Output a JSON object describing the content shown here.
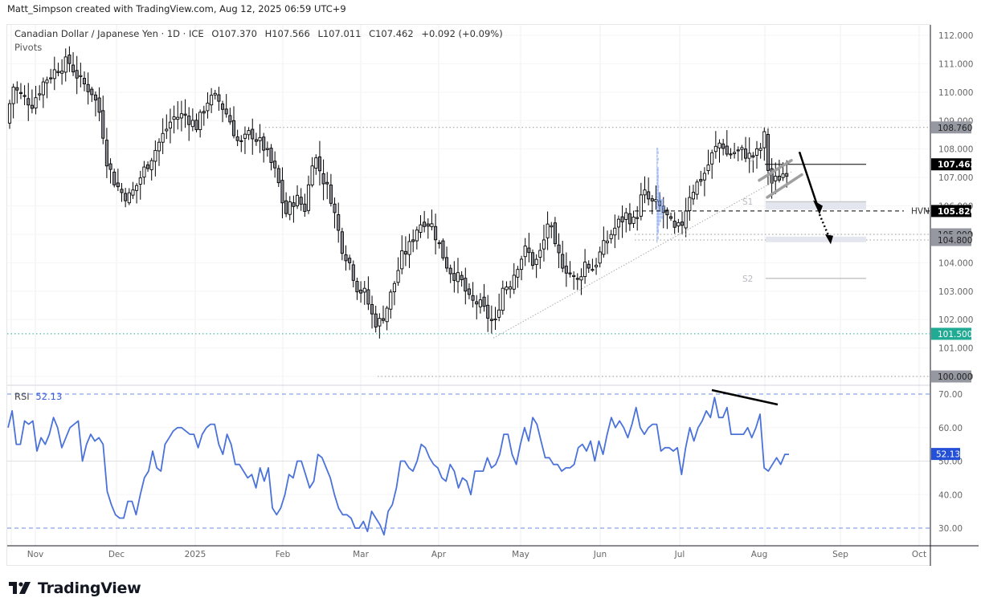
{
  "credit": "Matt_Simpson created with TradingView.com, Aug 12, 2025 06:59 UTC+9",
  "legend": {
    "symbol": "Canadian Dollar / Japanese Yen · 1D · ICE",
    "open": "O107.370",
    "high": "H107.566",
    "low": "L107.011",
    "close": "C107.462",
    "change": "+0.092 (+0.09%)",
    "indicator": "Pivots"
  },
  "rsi_legend": {
    "label": "RSI",
    "value": "52.13"
  },
  "brand": {
    "name": "TradingView"
  },
  "colors": {
    "rsi_line": "#4a72d9",
    "rsi_bands": "#6b8fe0",
    "tag_black": "#000000",
    "tag_gray": "#9598a1",
    "tag_green": "#22ab94",
    "tag_blue": "#2450d8",
    "bear_body": "#8a8d96",
    "bull_body": "#ffffff",
    "grid": "#efeff2",
    "vp_blue": "#7ea0ee"
  },
  "chart_data": [
    {
      "type": "candlestick",
      "title": "Canadian Dollar / Japanese Yen · 1D · ICE",
      "xlabel": "",
      "ylabel": "",
      "ylim": [
        99.5,
        112.4
      ],
      "x_ticks": [
        "Nov",
        "Dec",
        "2025",
        "Feb",
        "Mar",
        "Apr",
        "May",
        "Jun",
        "Jul",
        "Aug",
        "Sep",
        "Oct"
      ],
      "y_ticks": [
        112.0,
        111.0,
        110.0,
        109.0,
        108.0,
        107.0,
        106.0,
        105.0,
        104.0,
        103.0,
        102.0,
        101.0,
        100.0
      ],
      "last_ohlc": {
        "open": 107.37,
        "high": 107.566,
        "low": 107.011,
        "close": 107.462,
        "change": 0.092,
        "change_pct": 0.09
      },
      "levels": [
        {
          "label": "108.760",
          "value": 108.76,
          "style": "dotted",
          "tag": "gray"
        },
        {
          "label": "107.462",
          "value": 107.462,
          "style": "solid",
          "tag": "black",
          "note": "last price"
        },
        {
          "label": "HVN",
          "value": 105.82,
          "style": "dashed",
          "tag": "black"
        },
        {
          "label": "105.000",
          "value": 105.0,
          "style": "dotted",
          "tag": "gray"
        },
        {
          "label": "104.800",
          "value": 104.8,
          "style": "dotted",
          "tag": "gray"
        },
        {
          "label": "101.500",
          "value": 101.5,
          "style": "dotted-green",
          "tag": "green"
        },
        {
          "label": "100.000",
          "value": 100.0,
          "style": "dotted",
          "tag": "gray"
        }
      ],
      "pivots": [
        {
          "label": "P",
          "value": 107.6
        },
        {
          "label": "S1",
          "value": 106.1
        },
        {
          "label": "S2",
          "value": 103.45
        }
      ],
      "annotations": [
        "rising trendline from Apr low ~101.4",
        "bear flag channel early Aug",
        "projected arrow down to HVN 105.82 then dotted to ~104.8"
      ],
      "approx_closes": {
        "Nov": 110.0,
        "Dec": 106.5,
        "Jan": 109.5,
        "Feb": 105.5,
        "Mar": 102.0,
        "Apr": 102.5,
        "May": 104.0,
        "Jun": 106.0,
        "Jul": 108.3,
        "Aug": 107.46
      }
    },
    {
      "type": "line",
      "title": "RSI",
      "ylim": [
        26,
        72
      ],
      "y_ticks": [
        70,
        60,
        50,
        40,
        30
      ],
      "bands": [
        70,
        30
      ],
      "last_value": 52.13,
      "series": [
        {
          "name": "RSI",
          "values": [
            60,
            65,
            55,
            55,
            62,
            61,
            62,
            53,
            57,
            55,
            58,
            63,
            60,
            54,
            57,
            60,
            61,
            62,
            50,
            55,
            58,
            56,
            57,
            55,
            41,
            37,
            34,
            33,
            33,
            38,
            38,
            34,
            40,
            45,
            47,
            53,
            48,
            47,
            55,
            57,
            59,
            60,
            60,
            59,
            58,
            58,
            54,
            58,
            60,
            61,
            61,
            55,
            52,
            58,
            55,
            49,
            49,
            47,
            45,
            46,
            42,
            48,
            44,
            48,
            36,
            34,
            36,
            40,
            46,
            45,
            50,
            50,
            46,
            42,
            44,
            52,
            51,
            48,
            45,
            40,
            36,
            34,
            34,
            33,
            30,
            30,
            32,
            29,
            35,
            33,
            31,
            28,
            35,
            37,
            42,
            50,
            50,
            48,
            47,
            50,
            55,
            54,
            51,
            49,
            48,
            45,
            44,
            49,
            47,
            42,
            45,
            44,
            40,
            47,
            47,
            47,
            51,
            48,
            49,
            52,
            58,
            58,
            52,
            49,
            55,
            60,
            56,
            63,
            61,
            56,
            51,
            51,
            49,
            49,
            47,
            48,
            48,
            49,
            54,
            55,
            53,
            56,
            50,
            56,
            52,
            58,
            63,
            60,
            62,
            60,
            57,
            61,
            66,
            60,
            58,
            60,
            61,
            61,
            53,
            54,
            54,
            53,
            54,
            46,
            54,
            60,
            56,
            60,
            62,
            65,
            63,
            69,
            63,
            63,
            66,
            58,
            58,
            58,
            58,
            60,
            57,
            60,
            64,
            48,
            47,
            49,
            51,
            49,
            52,
            52
          ]
        }
      ]
    }
  ]
}
